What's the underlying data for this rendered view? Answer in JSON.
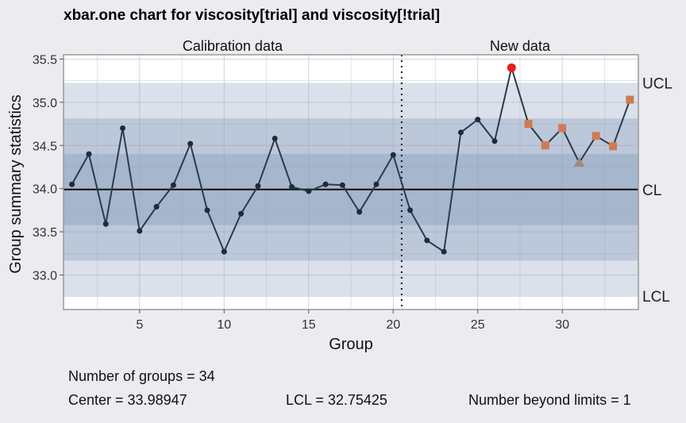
{
  "title": "xbar.one chart for viscosity[trial] and viscosity[!trial]",
  "chart_data": {
    "type": "line",
    "title": "xbar.one chart for viscosity[trial] and viscosity[!trial]",
    "xlabel": "Group",
    "ylabel": "Group summary statistics",
    "xlim": [
      0.5,
      34.5
    ],
    "ylim": [
      32.6,
      35.55
    ],
    "x_ticks": [
      5,
      10,
      15,
      20,
      25,
      30
    ],
    "y_ticks": [
      33.0,
      33.5,
      34.0,
      34.5,
      35.0,
      35.5
    ],
    "y_tick_labels": [
      "33.0",
      "33.5",
      "34.0",
      "34.5",
      "35.0",
      "35.5"
    ],
    "sections": [
      {
        "label": "Calibration data",
        "from": 1,
        "to": 20
      },
      {
        "label": "New data",
        "from": 21,
        "to": 34
      }
    ],
    "divider_x": 20.5,
    "center": 33.98947,
    "ucl": 35.2247,
    "lcl": 32.75425,
    "bands": [
      {
        "low": 32.75425,
        "high": 35.2247,
        "color": "#dbe1ea"
      },
      {
        "low": 33.1658,
        "high": 34.813,
        "color": "#bcc8da"
      },
      {
        "low": 33.5776,
        "high": 34.4013,
        "color": "#a6b6cd"
      }
    ],
    "limit_labels": {
      "ucl": "UCL",
      "cl": "CL",
      "lcl": "LCL"
    },
    "line_color": "#2a3a4f",
    "colors": {
      "normal": "#1f2b3a",
      "beyond": "#e8201a",
      "violating": "#d07a55",
      "triangle": "#a08c78"
    },
    "x": [
      1,
      2,
      3,
      4,
      5,
      6,
      7,
      8,
      9,
      10,
      11,
      12,
      13,
      14,
      15,
      16,
      17,
      18,
      19,
      20,
      21,
      22,
      23,
      24,
      25,
      26,
      27,
      28,
      29,
      30,
      31,
      32,
      33,
      34
    ],
    "values": [
      34.05,
      34.4,
      33.59,
      34.7,
      33.51,
      33.79,
      34.04,
      34.52,
      33.75,
      33.27,
      33.71,
      34.03,
      34.58,
      34.02,
      33.97,
      34.05,
      34.04,
      33.73,
      34.05,
      34.39,
      33.75,
      33.4,
      33.27,
      34.65,
      34.8,
      34.55,
      35.4,
      34.75,
      34.5,
      34.7,
      34.3,
      34.61,
      34.49,
      35.03
    ],
    "point_status": [
      "normal",
      "normal",
      "normal",
      "normal",
      "normal",
      "normal",
      "normal",
      "normal",
      "normal",
      "normal",
      "normal",
      "normal",
      "normal",
      "normal",
      "normal",
      "normal",
      "normal",
      "normal",
      "normal",
      "normal",
      "normal",
      "normal",
      "normal",
      "normal",
      "normal",
      "normal",
      "beyond",
      "violating",
      "violating",
      "violating",
      "triangle",
      "violating",
      "violating",
      "violating"
    ]
  },
  "stats": {
    "groups": "Number of groups = 34",
    "center": "Center = 33.98947",
    "lcl": "LCL = 32.75425",
    "beyond": "Number beyond limits = 1"
  }
}
